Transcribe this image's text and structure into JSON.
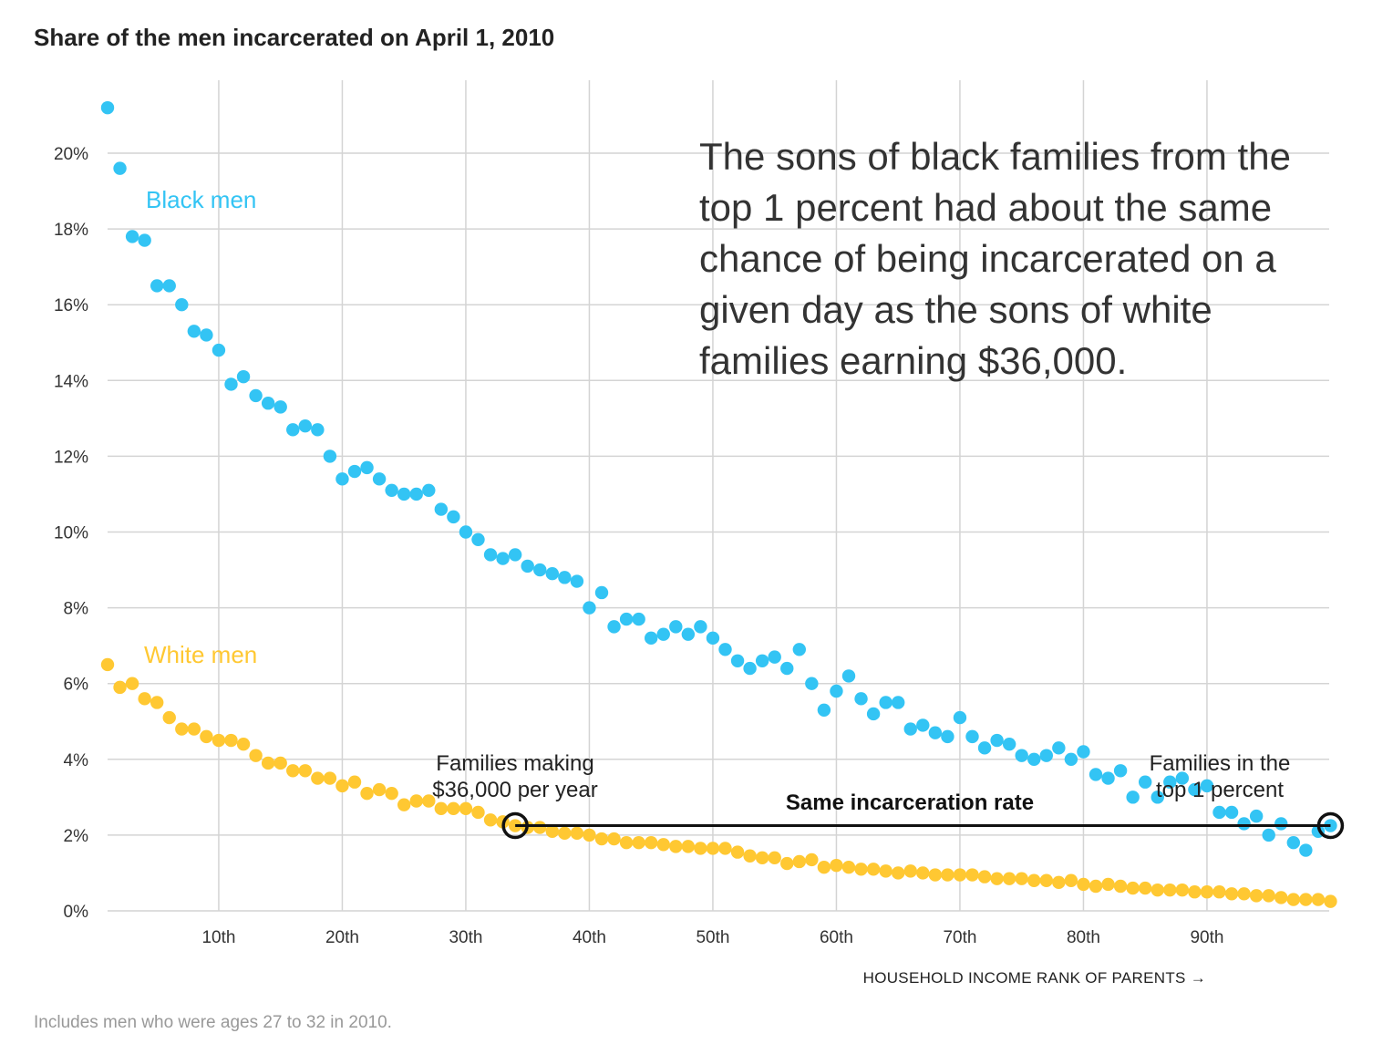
{
  "chart_data": {
    "type": "scatter",
    "title": "Share of the men incarcerated on April 1, 2010",
    "xlabel": "HOUSEHOLD INCOME RANK OF PARENTS →",
    "ylabel": "",
    "xlim": [
      1,
      100
    ],
    "ylim": [
      0,
      22
    ],
    "x_ticks": [
      {
        "value": 10,
        "label": "10th"
      },
      {
        "value": 20,
        "label": "20th"
      },
      {
        "value": 30,
        "label": "30th"
      },
      {
        "value": 40,
        "label": "40th"
      },
      {
        "value": 50,
        "label": "50th"
      },
      {
        "value": 60,
        "label": "60th"
      },
      {
        "value": 70,
        "label": "70th"
      },
      {
        "value": 80,
        "label": "80th"
      },
      {
        "value": 90,
        "label": "90th"
      }
    ],
    "y_ticks": [
      {
        "value": 0,
        "label": "0%"
      },
      {
        "value": 2,
        "label": "2%"
      },
      {
        "value": 4,
        "label": "4%"
      },
      {
        "value": 6,
        "label": "6%"
      },
      {
        "value": 8,
        "label": "8%"
      },
      {
        "value": 10,
        "label": "10%"
      },
      {
        "value": 12,
        "label": "12%"
      },
      {
        "value": 14,
        "label": "14%"
      },
      {
        "value": 16,
        "label": "16%"
      },
      {
        "value": 18,
        "label": "18%"
      },
      {
        "value": 20,
        "label": "20%"
      }
    ],
    "grid": true,
    "series": [
      {
        "name": "Black men",
        "color": "#33c4f4",
        "values": [
          21.2,
          19.6,
          17.8,
          17.7,
          16.5,
          16.5,
          16.0,
          15.3,
          15.2,
          14.8,
          13.9,
          14.1,
          13.6,
          13.4,
          13.3,
          12.7,
          12.8,
          12.7,
          12.0,
          11.4,
          11.6,
          11.7,
          11.4,
          11.1,
          11.0,
          11.0,
          11.1,
          10.6,
          10.4,
          10.0,
          9.8,
          9.4,
          9.3,
          9.4,
          9.1,
          9.0,
          8.9,
          8.8,
          8.7,
          8.0,
          8.4,
          7.5,
          7.7,
          7.7,
          7.2,
          7.3,
          7.5,
          7.3,
          7.5,
          7.2,
          6.9,
          6.6,
          6.4,
          6.6,
          6.7,
          6.4,
          6.9,
          6.0,
          5.3,
          5.8,
          6.2,
          5.6,
          5.2,
          5.5,
          5.5,
          4.8,
          4.9,
          4.7,
          4.6,
          5.1,
          4.6,
          4.3,
          4.5,
          4.4,
          4.1,
          4.0,
          4.1,
          4.3,
          4.0,
          4.2,
          3.6,
          3.5,
          3.7,
          3.0,
          3.4,
          3.0,
          3.4,
          3.5,
          3.2,
          3.3,
          2.6,
          2.6,
          2.3,
          2.5,
          2.0,
          2.3,
          1.8,
          1.6,
          2.1,
          2.25
        ]
      },
      {
        "name": "White men",
        "color": "#ffc832",
        "values": [
          6.5,
          5.9,
          6.0,
          5.6,
          5.5,
          5.1,
          4.8,
          4.8,
          4.6,
          4.5,
          4.5,
          4.4,
          4.1,
          3.9,
          3.9,
          3.7,
          3.7,
          3.5,
          3.5,
          3.3,
          3.4,
          3.1,
          3.2,
          3.1,
          2.8,
          2.9,
          2.9,
          2.7,
          2.7,
          2.7,
          2.6,
          2.4,
          2.35,
          2.25,
          2.2,
          2.2,
          2.1,
          2.05,
          2.05,
          2.0,
          1.9,
          1.9,
          1.8,
          1.8,
          1.8,
          1.75,
          1.7,
          1.7,
          1.65,
          1.65,
          1.65,
          1.55,
          1.45,
          1.4,
          1.4,
          1.25,
          1.3,
          1.35,
          1.15,
          1.2,
          1.15,
          1.1,
          1.1,
          1.05,
          1.0,
          1.05,
          1.0,
          0.95,
          0.95,
          0.95,
          0.95,
          0.9,
          0.85,
          0.85,
          0.85,
          0.8,
          0.8,
          0.75,
          0.8,
          0.7,
          0.65,
          0.7,
          0.65,
          0.6,
          0.6,
          0.55,
          0.55,
          0.55,
          0.5,
          0.5,
          0.5,
          0.45,
          0.45,
          0.4,
          0.4,
          0.35,
          0.3,
          0.3,
          0.3,
          0.25
        ]
      }
    ],
    "series_labels": [
      {
        "text": "Black men",
        "color": "#33c4f4"
      },
      {
        "text": "White men",
        "color": "#ffc832"
      }
    ],
    "annotations": {
      "callout_lines": [
        "The sons of black families from the",
        "top 1 percent had about the same",
        "chance of being incarcerated on a",
        "given day as the sons of white",
        "families earning $36,000."
      ],
      "left_marker": {
        "x": 34,
        "y": 2.25,
        "label_lines": [
          "Families making",
          "$36,000 per year"
        ]
      },
      "right_marker": {
        "x": 100,
        "y": 2.25,
        "label_lines": [
          "Families in the",
          "top 1 percent"
        ]
      },
      "connector_label": "Same incarceration rate"
    },
    "footnote": "Includes men who were ages 27 to 32 in 2010."
  }
}
